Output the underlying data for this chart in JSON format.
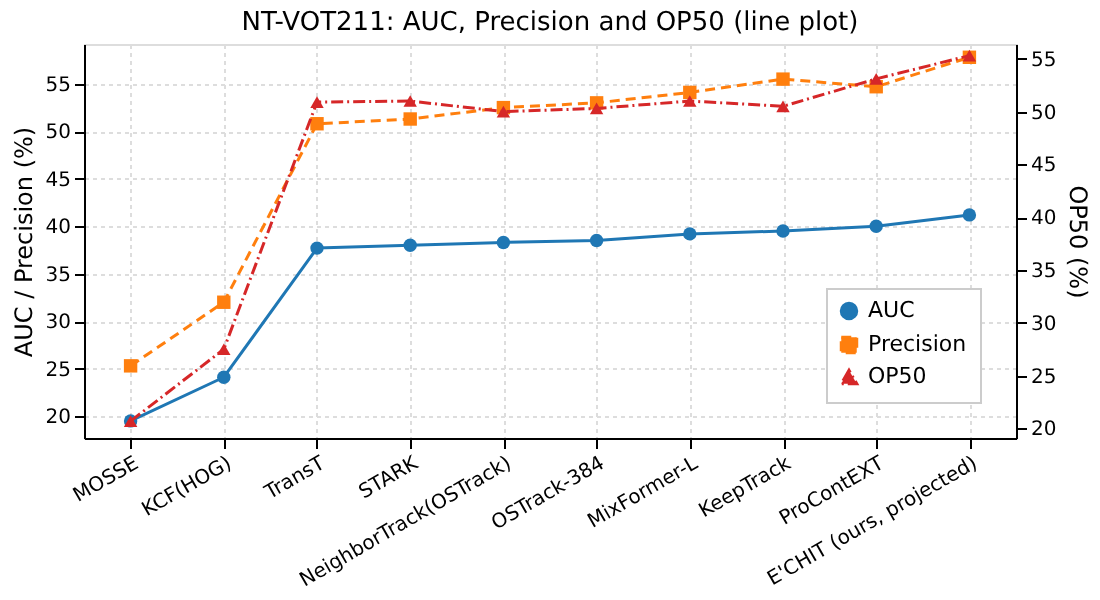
{
  "chart_data": {
    "type": "line",
    "title": "NT-VOT211: AUC, Precision and OP50 (line plot)",
    "ylabel": "AUC / Precision (%)",
    "y2label": "OP50 (%)",
    "categories": [
      "MOSSE",
      "KCF(HOG)",
      "TransT",
      "STARK",
      "NeighborTrack(OSTrack)",
      "OSTrack-384",
      "MixFormer-L",
      "KeepTrack",
      "ProContEXT",
      "E'CHIT (ours, projected)"
    ],
    "series": [
      {
        "name": "AUC",
        "color": "#1f77b4",
        "marker": "circle",
        "line_style": "solid",
        "values": [
          19.5,
          24.1,
          37.7,
          38.0,
          38.3,
          38.5,
          39.2,
          39.5,
          40.0,
          41.2
        ]
      },
      {
        "name": "Precision",
        "color": "#ff7f0e",
        "marker": "square",
        "line_style": "dashed",
        "values": [
          25.3,
          32.0,
          50.8,
          51.3,
          52.5,
          53.0,
          54.1,
          55.5,
          54.7,
          57.8
        ]
      },
      {
        "name": "OP50",
        "color": "#d62728",
        "marker": "triangle",
        "line_style": "dashdot",
        "axis": "y2",
        "values": [
          20.7,
          27.5,
          50.9,
          51.0,
          50.0,
          50.3,
          51.0,
          50.5,
          53.1,
          55.3
        ]
      }
    ],
    "ylim": [
      17.7,
      59.2
    ],
    "yticks": [
      20,
      25,
      30,
      35,
      40,
      45,
      50,
      55
    ],
    "y2lim": [
      19.1,
      56.4
    ],
    "y2ticks": [
      20,
      25,
      30,
      35,
      40,
      45,
      50,
      55
    ],
    "grid": true,
    "legend": "bottom right"
  }
}
